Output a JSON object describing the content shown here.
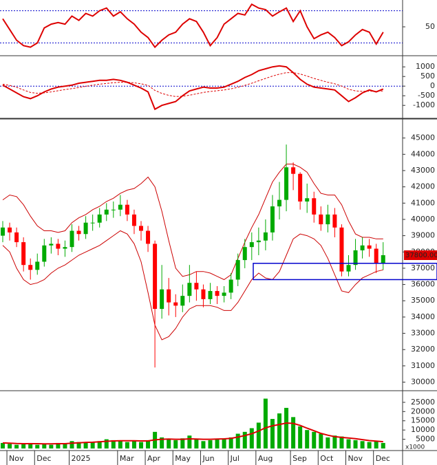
{
  "chart_data": [
    {
      "type": "line",
      "color": "#dd0000",
      "ylim": [
        0,
        100
      ],
      "yticks": [
        50
      ],
      "ref_lines": [
        20,
        80
      ],
      "ref_color": "#0000cc",
      "values": [
        65,
        45,
        25,
        15,
        12,
        20,
        48,
        55,
        58,
        55,
        70,
        62,
        75,
        70,
        80,
        85,
        70,
        78,
        65,
        55,
        40,
        30,
        12,
        25,
        35,
        40,
        55,
        65,
        60,
        40,
        15,
        30,
        55,
        65,
        75,
        72,
        92,
        85,
        82,
        70,
        78,
        85,
        60,
        80,
        50,
        28,
        35,
        40,
        30,
        15,
        22,
        35,
        45,
        40,
        18,
        40
      ]
    },
    {
      "type": "line",
      "ylim": [
        -1600,
        1400
      ],
      "yticks": [
        -1000,
        -500,
        0,
        500,
        1000
      ],
      "ref_lines": [
        0
      ],
      "ref_color": "#0000cc",
      "series": [
        {
          "color": "#dd0000",
          "dash": false,
          "values": [
            50,
            -150,
            -350,
            -550,
            -650,
            -500,
            -300,
            -150,
            -50,
            0,
            50,
            150,
            200,
            250,
            300,
            300,
            350,
            300,
            200,
            50,
            -100,
            -300,
            -1200,
            -1000,
            -900,
            -800,
            -500,
            -250,
            -150,
            -50,
            -100,
            -100,
            -50,
            100,
            250,
            450,
            600,
            800,
            900,
            1000,
            1050,
            1000,
            700,
            350,
            100,
            -50,
            -100,
            -150,
            -200,
            -500,
            -800,
            -600,
            -350,
            -200,
            -300,
            -150
          ]
        },
        {
          "color": "#dd0000",
          "dash": true,
          "values": [
            100,
            40,
            -60,
            -200,
            -330,
            -370,
            -350,
            -300,
            -240,
            -180,
            -130,
            -70,
            -10,
            50,
            100,
            140,
            180,
            200,
            200,
            170,
            120,
            40,
            -220,
            -380,
            -480,
            -540,
            -530,
            -470,
            -400,
            -330,
            -280,
            -240,
            -200,
            -140,
            -60,
            40,
            150,
            280,
            400,
            520,
            620,
            700,
            700,
            630,
            520,
            400,
            300,
            200,
            120,
            0,
            -160,
            -250,
            -270,
            -260,
            -270,
            -250
          ]
        }
      ]
    },
    {
      "type": "candlestick",
      "up_color": "#00aa00",
      "down_color": "#ff0000",
      "ylim": [
        29600,
        46000
      ],
      "yticks": [
        30000,
        31000,
        32000,
        33000,
        34000,
        35000,
        36000,
        37000,
        38000,
        39000,
        40000,
        41000,
        42000,
        43000,
        44000,
        45000
      ],
      "open": [
        39000,
        39500,
        39200,
        38600,
        37200,
        36900,
        37400,
        38400,
        38500,
        38200,
        38300,
        39300,
        39100,
        39800,
        39800,
        40300,
        40600,
        40600,
        40900,
        40300,
        39600,
        39300,
        38500,
        34500,
        35700,
        34900,
        34700,
        35300,
        36100,
        35700,
        35100,
        35600,
        35300,
        35500,
        36300,
        37500,
        38300,
        38600,
        38700,
        39200,
        40800,
        41200,
        43200,
        42800,
        41100,
        41300,
        40300,
        39700,
        40300,
        39500,
        36800,
        37200,
        38100,
        38400,
        38200,
        37300
      ],
      "high": [
        39900,
        39800,
        39500,
        38900,
        37600,
        37900,
        38800,
        38900,
        38800,
        38700,
        39700,
        39600,
        40200,
        40300,
        40700,
        41000,
        41100,
        41500,
        41200,
        40600,
        39900,
        39600,
        38700,
        37200,
        36400,
        35400,
        36000,
        37200,
        36800,
        36000,
        36100,
        35900,
        35900,
        36700,
        37900,
        38800,
        39200,
        39500,
        40000,
        41500,
        42300,
        44600,
        43500,
        42900,
        42200,
        41700,
        40800,
        40900,
        40700,
        39700,
        37800,
        38800,
        38900,
        38800,
        38500,
        38600
      ],
      "low": [
        38600,
        38700,
        38300,
        36800,
        36300,
        36600,
        37100,
        37900,
        37800,
        37700,
        38000,
        38700,
        38800,
        39300,
        39500,
        39900,
        40100,
        40200,
        39900,
        39100,
        38700,
        38000,
        30900,
        33900,
        34100,
        34000,
        34300,
        34900,
        35000,
        34600,
        34800,
        34800,
        34900,
        35100,
        35900,
        37000,
        37500,
        37800,
        38100,
        38700,
        40000,
        40500,
        41800,
        40600,
        40400,
        39800,
        39300,
        39200,
        38900,
        36500,
        36500,
        36900,
        37600,
        37700,
        36700,
        36900
      ],
      "close": [
        39500,
        39200,
        38600,
        37200,
        36900,
        37400,
        38400,
        38500,
        38200,
        38300,
        39300,
        39100,
        39800,
        39800,
        40300,
        40600,
        40600,
        40900,
        40300,
        39600,
        39300,
        38500,
        34500,
        35700,
        34900,
        34700,
        35300,
        36100,
        35700,
        35100,
        35600,
        35300,
        35500,
        36300,
        37500,
        38300,
        38600,
        38700,
        39200,
        40800,
        41200,
        43200,
        42800,
        41100,
        41300,
        40300,
        39700,
        40300,
        39500,
        36800,
        37200,
        38100,
        38400,
        38200,
        37300,
        37800
      ],
      "bands": {
        "color": "#cc0000",
        "upper": [
          41200,
          41500,
          41400,
          40900,
          40200,
          39600,
          39300,
          39300,
          39200,
          39300,
          39800,
          40100,
          40300,
          40600,
          40800,
          41100,
          41300,
          41600,
          41800,
          41900,
          42200,
          42600,
          42000,
          40500,
          38700,
          37000,
          36500,
          36600,
          36800,
          36800,
          36700,
          36500,
          36300,
          36600,
          37600,
          38600,
          39500,
          40300,
          41300,
          42300,
          42900,
          43400,
          43400,
          43200,
          42900,
          42200,
          41600,
          41500,
          41500,
          40900,
          39900,
          39100,
          38900,
          38900,
          38800,
          38800
        ],
        "lower": [
          38400,
          38000,
          37000,
          36300,
          36000,
          36100,
          36300,
          36700,
          37000,
          37200,
          37500,
          37800,
          38000,
          38200,
          38400,
          38700,
          39000,
          39300,
          39100,
          38500,
          37400,
          35500,
          33500,
          32600,
          32800,
          33300,
          34000,
          34500,
          34700,
          34700,
          34700,
          34600,
          34400,
          34400,
          34900,
          35600,
          36300,
          36700,
          36400,
          36300,
          36800,
          37800,
          38800,
          39100,
          39000,
          38800,
          38400,
          37600,
          36600,
          35600,
          35500,
          36000,
          36400,
          36600,
          36800,
          36900
        ]
      },
      "last_price": {
        "value": 37800,
        "label": "37800.00",
        "color": "#dd0000"
      },
      "zone": {
        "high": 37300,
        "low": 36300,
        "color": "#0000cc"
      }
    },
    {
      "type": "bar",
      "color": "#00aa00",
      "ylim": [
        0,
        29800
      ],
      "yticks": [
        5000,
        10000,
        15000,
        20000,
        25000
      ],
      "unit_label": "x1000",
      "categories": [
        null,
        "Nov",
        null,
        null,
        null,
        "Dec",
        null,
        null,
        null,
        null,
        "2025",
        null,
        null,
        null,
        null,
        null,
        null,
        "Mar",
        null,
        null,
        null,
        "Apr",
        null,
        null,
        null,
        "May",
        null,
        null,
        null,
        "Jun",
        null,
        null,
        null,
        "Jul",
        null,
        null,
        null,
        "Aug",
        null,
        null,
        null,
        null,
        "Sep",
        null,
        null,
        null,
        "Oct",
        null,
        null,
        null,
        "Nov",
        null,
        null,
        null,
        "Dec",
        null
      ],
      "values": [
        3000,
        2500,
        2000,
        2500,
        3000,
        2000,
        2500,
        2000,
        3000,
        2500,
        4000,
        3500,
        3000,
        3500,
        4000,
        5000,
        4500,
        4000,
        3500,
        4000,
        3500,
        4500,
        9000,
        6000,
        5000,
        4500,
        5500,
        7000,
        5000,
        4000,
        4500,
        5000,
        5500,
        6000,
        8000,
        9000,
        11000,
        14000,
        27000,
        16000,
        19000,
        22000,
        17000,
        12000,
        10000,
        9000,
        8000,
        6000,
        7000,
        6500,
        5000,
        4500,
        4000,
        3500,
        4000,
        3000
      ],
      "ma": {
        "color": "#dd0000",
        "values": [
          3000,
          2900,
          2700,
          2600,
          2600,
          2600,
          2500,
          2500,
          2600,
          2600,
          2900,
          3100,
          3300,
          3400,
          3600,
          3900,
          4100,
          4200,
          4200,
          4200,
          4100,
          4100,
          4700,
          5000,
          5100,
          5000,
          5000,
          5200,
          5100,
          5000,
          5000,
          5100,
          5200,
          5500,
          6200,
          7000,
          8000,
          9500,
          11200,
          12300,
          13000,
          13800,
          13600,
          12500,
          11000,
          9600,
          8200,
          7200,
          6400,
          6000,
          5700,
          5300,
          4800,
          4300,
          4000,
          3700
        ]
      }
    }
  ]
}
